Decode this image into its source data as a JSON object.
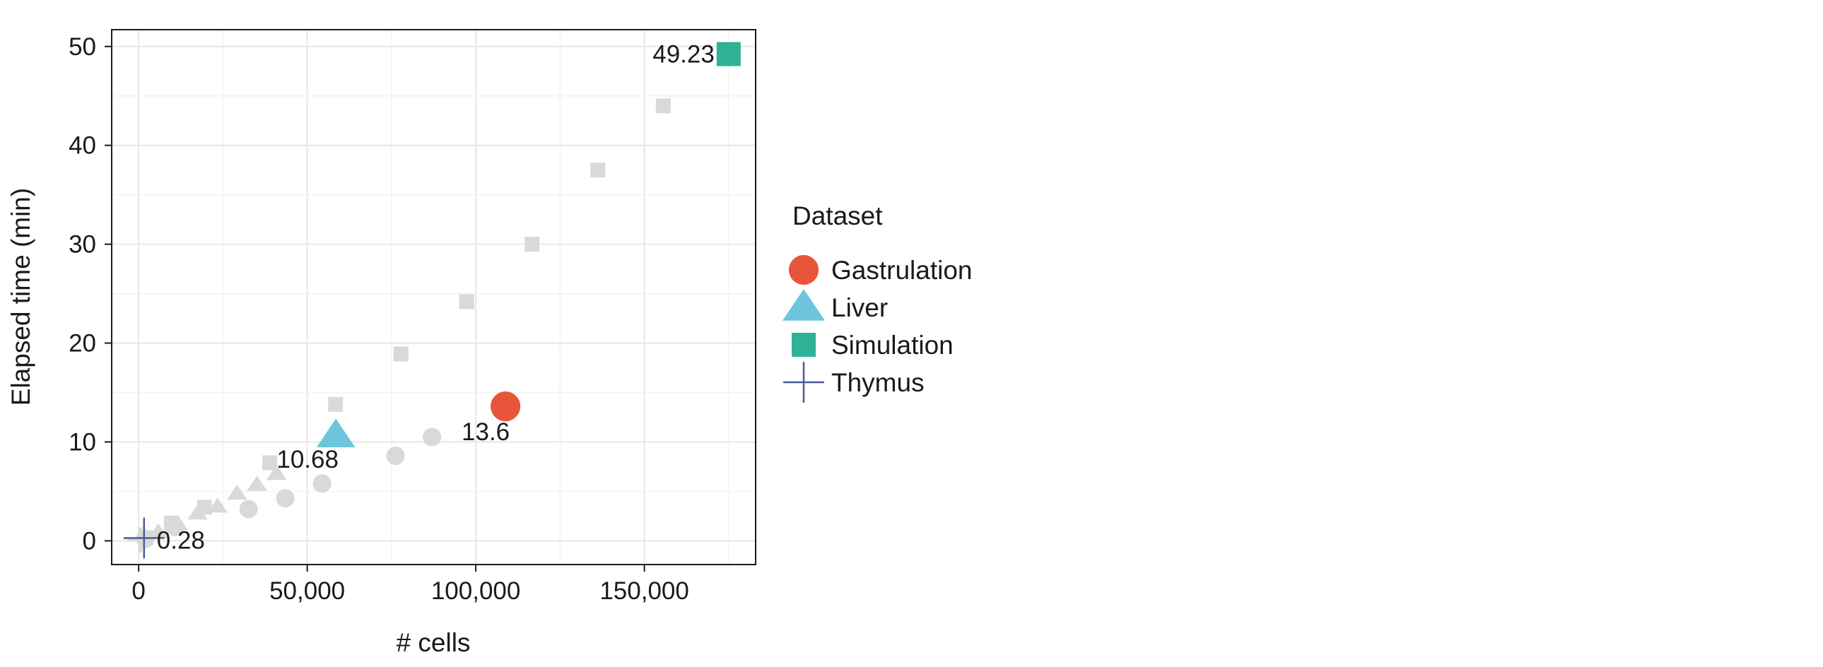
{
  "chart_data": {
    "type": "scatter",
    "xlabel": "# cells",
    "ylabel": "Elapsed time (min)",
    "xlim": [
      -8000,
      183000
    ],
    "ylim": [
      -2.4,
      51.7
    ],
    "x_ticks": [
      {
        "value": 0,
        "label": "0"
      },
      {
        "value": 50000,
        "label": "50,000"
      },
      {
        "value": 100000,
        "label": "100,000"
      },
      {
        "value": 150000,
        "label": "150,000"
      }
    ],
    "y_ticks": [
      {
        "value": 0,
        "label": "0"
      },
      {
        "value": 10,
        "label": "10"
      },
      {
        "value": 20,
        "label": "20"
      },
      {
        "value": 30,
        "label": "30"
      },
      {
        "value": 40,
        "label": "40"
      },
      {
        "value": 50,
        "label": "50"
      }
    ],
    "grid": true,
    "legend": {
      "title": "Dataset",
      "placement": "right",
      "entries": [
        {
          "name": "Gastrulation",
          "shape": "circle",
          "color": "#E8553A"
        },
        {
          "name": "Liver",
          "shape": "triangle",
          "color": "#6CC5DA"
        },
        {
          "name": "Simulation",
          "shape": "square",
          "color": "#2EB195"
        },
        {
          "name": "Thymus",
          "shape": "cross",
          "color": "#4A5B96"
        }
      ]
    },
    "background_color": "#D9D9D9",
    "series": [
      {
        "name": "Gastrulation",
        "shape": "circle",
        "color": "#E8553A",
        "points": [
          {
            "x": 108800,
            "y": 13.6
          }
        ],
        "label": "13.6",
        "background_points": [
          {
            "x": 2000,
            "y": 0.2
          },
          {
            "x": 10800,
            "y": 1.4
          },
          {
            "x": 32600,
            "y": 3.2
          },
          {
            "x": 43500,
            "y": 4.3
          },
          {
            "x": 54400,
            "y": 5.8
          },
          {
            "x": 76200,
            "y": 8.6
          },
          {
            "x": 87000,
            "y": 10.5
          }
        ]
      },
      {
        "name": "Liver",
        "shape": "triangle",
        "color": "#6CC5DA",
        "points": [
          {
            "x": 58500,
            "y": 10.68
          }
        ],
        "label": "10.68",
        "background_points": [
          {
            "x": 5800,
            "y": 0.9
          },
          {
            "x": 11700,
            "y": 1.7
          },
          {
            "x": 17500,
            "y": 2.8
          },
          {
            "x": 23400,
            "y": 3.5
          },
          {
            "x": 29200,
            "y": 4.8
          },
          {
            "x": 35100,
            "y": 5.7
          },
          {
            "x": 40900,
            "y": 6.8
          }
        ]
      },
      {
        "name": "Simulation",
        "shape": "square",
        "color": "#2EB195",
        "points": [
          {
            "x": 175000,
            "y": 49.23
          }
        ],
        "label": "49.23",
        "background_points": [
          {
            "x": 2000,
            "y": 0.3
          },
          {
            "x": 9700,
            "y": 1.8
          },
          {
            "x": 19500,
            "y": 3.4
          },
          {
            "x": 38900,
            "y": 7.9
          },
          {
            "x": 58400,
            "y": 13.8
          },
          {
            "x": 77800,
            "y": 18.9
          },
          {
            "x": 97300,
            "y": 24.2
          },
          {
            "x": 116700,
            "y": 30.0
          },
          {
            "x": 136200,
            "y": 37.5
          },
          {
            "x": 155600,
            "y": 44.0
          }
        ]
      },
      {
        "name": "Thymus",
        "shape": "cross",
        "color": "#4A5B96",
        "points": [
          {
            "x": 1600,
            "y": 0.28
          }
        ],
        "label": "0.28",
        "background_points": [
          {
            "x": 300,
            "y": 0.05
          },
          {
            "x": 800,
            "y": 0.12
          }
        ]
      }
    ]
  }
}
